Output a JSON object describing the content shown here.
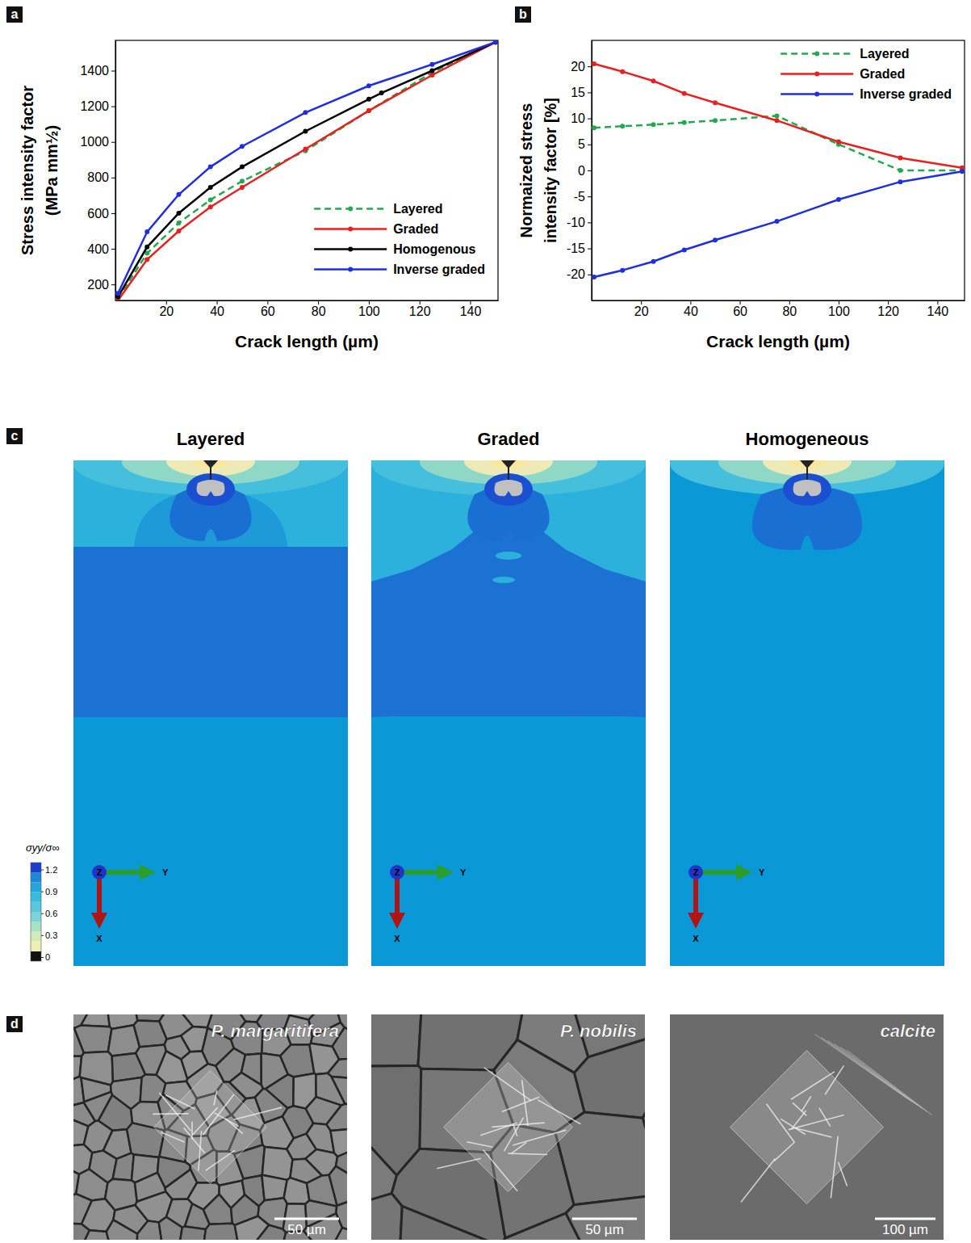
{
  "panel_labels": [
    "a",
    "b",
    "c",
    "d"
  ],
  "chart_data": [
    {
      "type": "line",
      "x_label": "Crack length (µm)",
      "y_label": [
        "Stress intensity factor",
        "(MPa mm½)"
      ],
      "xlim": [
        0,
        151
      ],
      "xticks": [
        20,
        40,
        60,
        80,
        100,
        120,
        140
      ],
      "ylim": [
        110,
        1570
      ],
      "yticks": [
        200,
        400,
        600,
        800,
        1000,
        1200,
        1400
      ],
      "legend": "lower right",
      "series": [
        {
          "name": "Layered",
          "color": "#22a94f",
          "line_style": "dashed",
          "marker": "circle",
          "x": [
            1,
            12.5,
            25,
            37.5,
            50,
            75,
            100,
            125,
            150
          ],
          "values": [
            120,
            375,
            545,
            675,
            780,
            950,
            1175,
            1390,
            1560
          ]
        },
        {
          "name": "Graded",
          "color": "#e8201f",
          "line_style": "solid",
          "marker": "circle",
          "x": [
            1,
            12.5,
            25,
            37.5,
            50,
            75,
            100,
            125,
            150
          ],
          "values": [
            110,
            340,
            500,
            635,
            745,
            960,
            1175,
            1375,
            1560
          ]
        },
        {
          "name": "Homogenous",
          "color": "#000000",
          "line_style": "solid",
          "marker": "circle",
          "x": [
            1,
            12.5,
            25,
            37.5,
            50,
            75,
            100,
            105,
            125,
            150
          ],
          "values": [
            130,
            410,
            600,
            745,
            860,
            1060,
            1240,
            1275,
            1400,
            1560
          ]
        },
        {
          "name": "Inverse graded",
          "color": "#1f2fe0",
          "line_style": "solid",
          "marker": "circle",
          "x": [
            1,
            12.5,
            25,
            37.5,
            50,
            75,
            100,
            125,
            150
          ],
          "values": [
            150,
            495,
            705,
            860,
            975,
            1165,
            1315,
            1435,
            1560
          ]
        }
      ]
    },
    {
      "type": "line",
      "x_label": "Crack length (µm)",
      "y_label": [
        "Normaized stress",
        "intensity factor [%]"
      ],
      "xlim": [
        0,
        151
      ],
      "xticks": [
        20,
        40,
        60,
        80,
        100,
        120,
        140
      ],
      "ylim": [
        -25,
        25
      ],
      "yticks": [
        -20,
        -15,
        -10,
        -5,
        0,
        5,
        10,
        15,
        20
      ],
      "legend": "upper right",
      "series": [
        {
          "name": "Layered",
          "color": "#22a94f",
          "line_style": "dashed",
          "marker": "circle",
          "x": [
            1,
            12.5,
            25,
            37.5,
            50,
            75,
            100,
            125,
            150
          ],
          "values": [
            8.2,
            8.5,
            8.8,
            9.2,
            9.6,
            10.5,
            5.0,
            0,
            0
          ]
        },
        {
          "name": "Graded",
          "color": "#e8201f",
          "line_style": "solid",
          "marker": "circle",
          "x": [
            1,
            12.5,
            25,
            37.5,
            50,
            75,
            100,
            125,
            150
          ],
          "values": [
            20.5,
            19,
            17.2,
            14.8,
            13,
            9.6,
            5.5,
            2.4,
            0.5
          ]
        },
        {
          "name": "Inverse graded",
          "color": "#1f2fe0",
          "line_style": "solid",
          "marker": "circle",
          "x": [
            1,
            12.5,
            25,
            37.5,
            50,
            75,
            100,
            125,
            150
          ],
          "values": [
            -20.5,
            -19.2,
            -17.5,
            -15.3,
            -13.4,
            -9.8,
            -5.6,
            -2.2,
            -0.2
          ]
        }
      ]
    }
  ],
  "contour_panel": {
    "titles": [
      "Layered",
      "Graded",
      "Homogeneous"
    ],
    "axis_labels": [
      "Z",
      "Y",
      "X"
    ],
    "colorbar": {
      "title": "σyy/σ∞",
      "range": [
        -0.05,
        1.3
      ],
      "ticks": [
        0,
        0.3,
        0.6,
        0.9,
        1.2
      ]
    }
  },
  "micrograph_panel": {
    "images": [
      {
        "label": "P. margaritifera",
        "scale_bar": "50 µm"
      },
      {
        "label": "P. nobilis",
        "scale_bar": "50 µm"
      },
      {
        "label": "calcite",
        "scale_bar": "100 µm"
      }
    ]
  }
}
